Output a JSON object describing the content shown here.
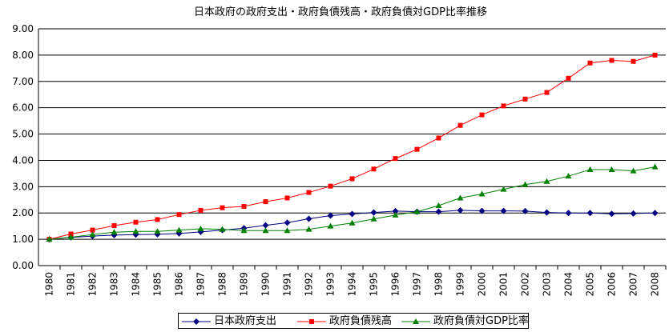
{
  "chart_data": {
    "type": "line",
    "title": "日本政府の政府支出・政府負債残高・政府負債対GDP比率推移",
    "xlabel": "",
    "ylabel": "",
    "ylim": [
      0,
      9
    ],
    "y_ticks": [
      "0.00",
      "1.00",
      "2.00",
      "3.00",
      "4.00",
      "5.00",
      "6.00",
      "7.00",
      "8.00",
      "9.00"
    ],
    "grid": true,
    "legend_position": "bottom",
    "categories": [
      "1980",
      "1981",
      "1982",
      "1983",
      "1984",
      "1985",
      "1986",
      "1987",
      "1988",
      "1989",
      "1990",
      "1991",
      "1992",
      "1993",
      "1994",
      "1995",
      "1996",
      "1997",
      "1998",
      "1999",
      "2000",
      "2001",
      "2002",
      "2003",
      "2004",
      "2005",
      "2006",
      "2007",
      "2008"
    ],
    "series": [
      {
        "name": "日本政府支出",
        "color": "#000080",
        "marker": "diamond",
        "values": [
          1.0,
          1.07,
          1.12,
          1.16,
          1.18,
          1.19,
          1.22,
          1.28,
          1.35,
          1.42,
          1.53,
          1.63,
          1.78,
          1.9,
          1.96,
          2.02,
          2.07,
          2.05,
          2.05,
          2.1,
          2.08,
          2.08,
          2.07,
          2.02,
          2.0,
          2.0,
          1.97,
          1.98,
          2.0
        ]
      },
      {
        "name": "政府負債残高",
        "color": "#ff0000",
        "marker": "square",
        "values": [
          1.0,
          1.2,
          1.35,
          1.52,
          1.65,
          1.75,
          1.94,
          2.1,
          2.2,
          2.25,
          2.43,
          2.57,
          2.78,
          3.02,
          3.3,
          3.67,
          4.07,
          4.42,
          4.85,
          5.33,
          5.73,
          6.07,
          6.33,
          6.58,
          7.12,
          7.7,
          7.8,
          7.76,
          8.0
        ]
      },
      {
        "name": "政府負債対GDP比率",
        "color": "#008000",
        "marker": "triangle",
        "values": [
          1.0,
          1.08,
          1.18,
          1.27,
          1.3,
          1.3,
          1.35,
          1.4,
          1.38,
          1.33,
          1.33,
          1.33,
          1.38,
          1.5,
          1.62,
          1.77,
          1.92,
          2.05,
          2.28,
          2.57,
          2.72,
          2.9,
          3.08,
          3.2,
          3.4,
          3.65,
          3.65,
          3.6,
          3.75
        ]
      }
    ]
  }
}
